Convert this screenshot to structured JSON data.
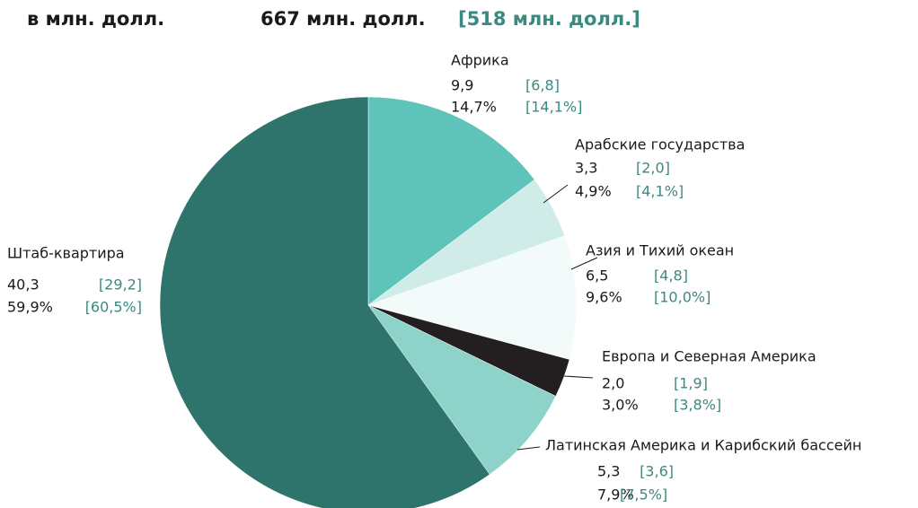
{
  "chart_data": {
    "type": "pie",
    "headers": [
      "в млн. долл.",
      "667 млн. долл.",
      "[518 млн. долл.]"
    ],
    "categories": [
      "Африка",
      "Арабские государства",
      "Азия и Тихий океан",
      "Европа и Северная Америка",
      "Латинская Америка и Карибский бассейн",
      "Штаб-квартира"
    ],
    "values": [
      14.7,
      4.9,
      9.6,
      3.0,
      7.9,
      59.9
    ],
    "value_labels": [
      "14,7%",
      "4,9%",
      "9,6%",
      "3,0%",
      "7,9%",
      "59,9%"
    ],
    "amounts": [
      9.9,
      3.3,
      6.5,
      2.0,
      5.3,
      40.3
    ],
    "amount_labels": [
      "9,9",
      "3,3",
      "6,5",
      "2,0",
      "5,3",
      "40,3"
    ],
    "prior_amounts": [
      6.8,
      2.0,
      4.8,
      1.9,
      3.6,
      29.2
    ],
    "prior_amount_labels": [
      "[6,8]",
      "[2,0]",
      "[4,8]",
      "[1,9]",
      "[3,6]",
      "[29,2]"
    ],
    "prior_percents": [
      14.1,
      4.1,
      10.0,
      3.8,
      7.5,
      60.5
    ],
    "prior_percent_labels": [
      "[14,1%]",
      "[4,1%]",
      "[10,0%]",
      "[3,8%]",
      "[7,5%]",
      "[60,5%]"
    ],
    "colors": [
      "#5ec4b9",
      "#d0ece8",
      "#f3fafa",
      "#231f20",
      "#8dd3c9",
      "#2e746d"
    ]
  }
}
